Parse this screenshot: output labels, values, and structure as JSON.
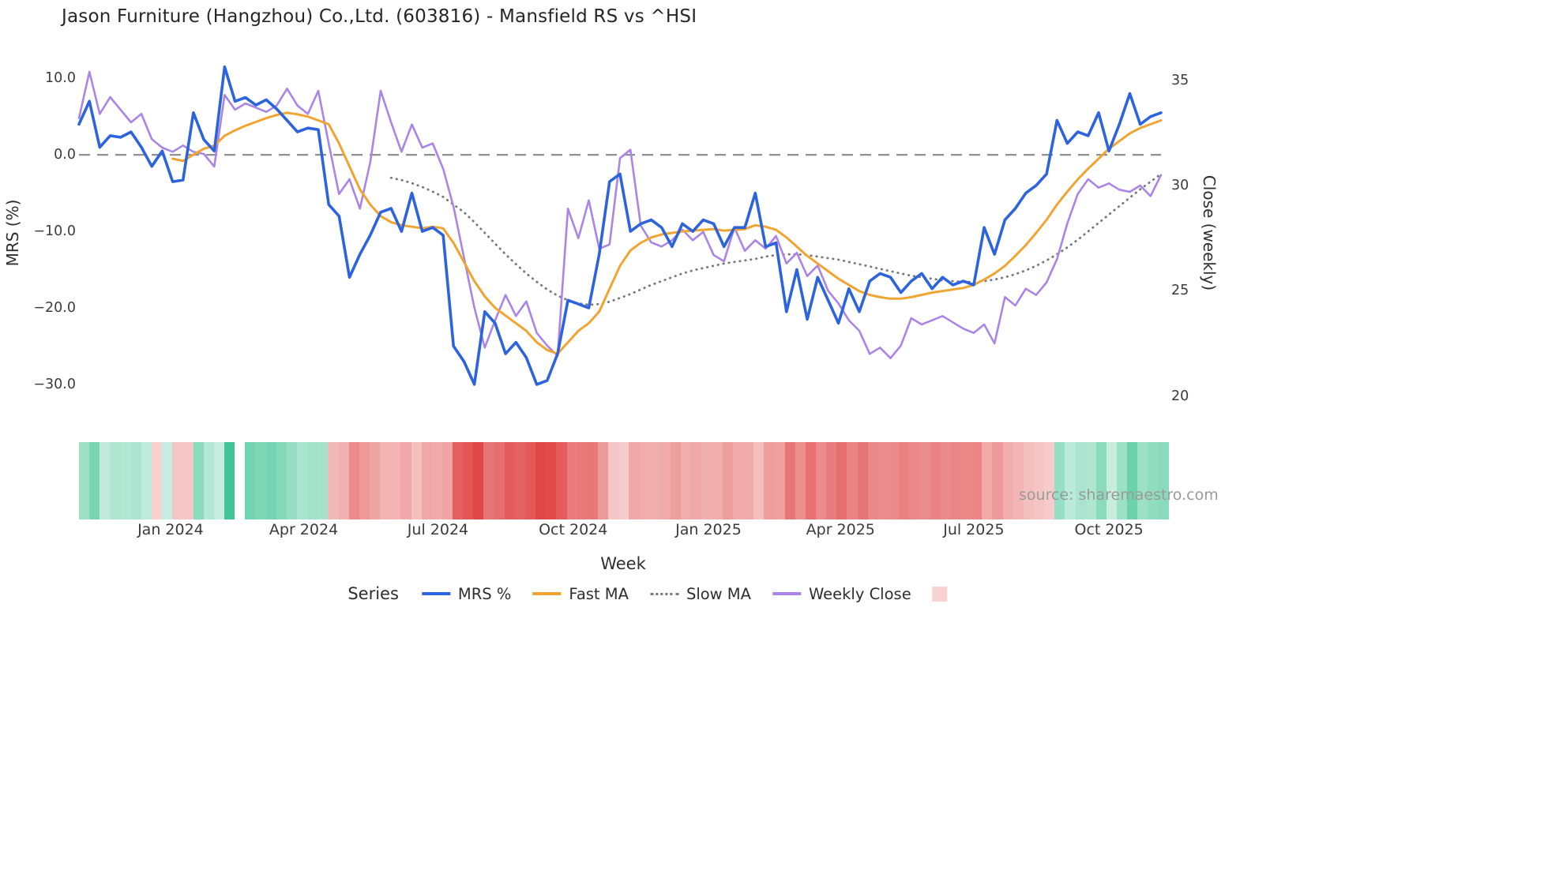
{
  "source_text": "source: sharemaestro.com",
  "legend": {
    "title": "Series",
    "entries": [
      {
        "id": "mrs",
        "label": "MRS %",
        "color": "#2d64dd",
        "style": "line"
      },
      {
        "id": "fast_ma",
        "label": "Fast MA",
        "color": "#f0a431",
        "style": "line"
      },
      {
        "id": "slow_ma",
        "label": "Slow MA",
        "color": "#787878",
        "style": "dotted"
      },
      {
        "id": "weekly_close",
        "label": "Weekly Close",
        "color": "#aa85e6",
        "style": "line"
      },
      {
        "id": "heatmap",
        "label": "",
        "color": "#f9d2d2",
        "style": "square"
      }
    ]
  },
  "chart_data": {
    "type": "line",
    "title": "Jason Furniture (Hangzhou) Co.,Ltd. (603816) - Mansfield RS vs ^HSI",
    "xlabel": "Week",
    "ylabel_left": "MRS (%)",
    "ylabel_right": "Close (weekly)",
    "x_unit": "weekly observations, index 0-104",
    "n_weeks": 105,
    "zero_reference_line": 0,
    "left_ylim": [
      -32.9,
      12.5
    ],
    "right_ylim": [
      19.5,
      36.0
    ],
    "left_ticks": [
      {
        "label": "10.0",
        "value": 10
      },
      {
        "label": "0.0",
        "value": 0
      },
      {
        "label": "−10.0",
        "value": -10
      },
      {
        "label": "−20.0",
        "value": -20
      },
      {
        "label": "−30.0",
        "value": -30
      }
    ],
    "right_ticks": [
      {
        "label": "35",
        "value": 35
      },
      {
        "label": "30",
        "value": 30
      },
      {
        "label": "25",
        "value": 25
      },
      {
        "label": "20",
        "value": 20
      }
    ],
    "x_ticks": [
      {
        "label": "Jan 2024",
        "week": 8.8
      },
      {
        "label": "Apr 2024",
        "week": 21.6
      },
      {
        "label": "Jul 2024",
        "week": 34.5
      },
      {
        "label": "Oct 2024",
        "week": 47.5
      },
      {
        "label": "Jan 2025",
        "week": 60.5
      },
      {
        "label": "Apr 2025",
        "week": 73.2
      },
      {
        "label": "Jul 2025",
        "week": 86.0
      },
      {
        "label": "Oct 2025",
        "week": 99.0
      }
    ],
    "draw_order": [
      "slow_ma",
      "weekly_close",
      "fast_ma",
      "mrs"
    ],
    "series": [
      {
        "id": "mrs",
        "name": "MRS %",
        "axis": "left",
        "color": "#2d64dd",
        "width": 3.6,
        "dash": null,
        "values": [
          4.0,
          7.0,
          1.0,
          2.5,
          2.3,
          3.0,
          1.0,
          -1.5,
          0.5,
          -3.5,
          -3.3,
          5.5,
          2.0,
          0.5,
          11.5,
          7.0,
          7.5,
          6.5,
          7.2,
          6.0,
          4.5,
          3.0,
          3.5,
          3.3,
          -6.5,
          -8.0,
          -16.0,
          -13.0,
          -10.5,
          -7.5,
          -7.0,
          -10.0,
          -5.0,
          -10.0,
          -9.5,
          -10.5,
          -25.0,
          -27.0,
          -30.0,
          -20.5,
          -22.0,
          -26.0,
          -24.5,
          -26.5,
          -30.0,
          -29.5,
          -26.0,
          -19.0,
          -19.5,
          -20.0,
          -13.0,
          -3.5,
          -2.5,
          -10.0,
          -9.0,
          -8.5,
          -9.5,
          -12.0,
          -9.0,
          -10.0,
          -8.5,
          -9.0,
          -12.0,
          -9.5,
          -9.5,
          -5.0,
          -12.0,
          -11.5,
          -20.5,
          -15.0,
          -21.5,
          -16.0,
          -19.0,
          -22.0,
          -17.5,
          -20.5,
          -16.5,
          -15.5,
          -16.0,
          -18.0,
          -16.5,
          -15.5,
          -17.5,
          -16.0,
          -17.0,
          -16.5,
          -17.0,
          -9.5,
          -13.0,
          -8.5,
          -7.0,
          -5.0,
          -4.0,
          -2.5,
          4.5,
          1.5,
          3.0,
          2.5,
          5.5,
          0.5,
          4.0,
          8.0,
          4.0,
          5.0,
          5.5
        ]
      },
      {
        "id": "fast_ma",
        "name": "Fast MA",
        "axis": "left",
        "color": "#f0a431",
        "width": 3,
        "dash": null,
        "values": [
          null,
          null,
          null,
          null,
          null,
          null,
          null,
          null,
          null,
          -0.5,
          -0.8,
          0.0,
          0.8,
          1.2,
          2.5,
          3.2,
          3.8,
          4.3,
          4.8,
          5.2,
          5.5,
          5.3,
          5.0,
          4.5,
          4.0,
          1.5,
          -1.5,
          -4.5,
          -6.5,
          -8.0,
          -8.8,
          -9.2,
          -9.4,
          -9.6,
          -9.4,
          -9.6,
          -11.5,
          -14.0,
          -16.5,
          -18.5,
          -20.0,
          -21.0,
          -22.0,
          -23.0,
          -24.5,
          -25.5,
          -26.0,
          -24.5,
          -23.0,
          -22.0,
          -20.5,
          -17.5,
          -14.5,
          -12.5,
          -11.5,
          -10.8,
          -10.4,
          -10.2,
          -10.0,
          -9.9,
          -9.8,
          -9.7,
          -9.9,
          -9.8,
          -9.7,
          -9.2,
          -9.4,
          -9.8,
          -10.8,
          -12.0,
          -13.2,
          -14.2,
          -15.2,
          -16.2,
          -17.0,
          -17.8,
          -18.3,
          -18.6,
          -18.8,
          -18.8,
          -18.6,
          -18.3,
          -18.0,
          -17.8,
          -17.6,
          -17.4,
          -17.0,
          -16.3,
          -15.5,
          -14.5,
          -13.2,
          -11.8,
          -10.2,
          -8.5,
          -6.5,
          -4.8,
          -3.2,
          -1.8,
          -0.5,
          0.8,
          1.8,
          2.8,
          3.5,
          4.0,
          4.5
        ]
      },
      {
        "id": "slow_ma",
        "name": "Slow MA",
        "axis": "left",
        "color": "#787878",
        "width": 2.8,
        "dash": "0.5 6.5",
        "values": [
          null,
          null,
          null,
          null,
          null,
          null,
          null,
          null,
          null,
          null,
          null,
          null,
          null,
          null,
          null,
          null,
          null,
          null,
          null,
          null,
          null,
          null,
          null,
          null,
          null,
          null,
          null,
          null,
          null,
          null,
          -3.0,
          -3.3,
          -3.7,
          -4.2,
          -4.8,
          -5.5,
          -6.5,
          -7.5,
          -8.8,
          -10.2,
          -11.6,
          -13.0,
          -14.3,
          -15.5,
          -16.6,
          -17.6,
          -18.4,
          -19.0,
          -19.4,
          -19.6,
          -19.5,
          -19.2,
          -18.7,
          -18.2,
          -17.6,
          -17.0,
          -16.5,
          -16.0,
          -15.5,
          -15.1,
          -14.8,
          -14.5,
          -14.2,
          -14.0,
          -13.8,
          -13.6,
          -13.3,
          -13.1,
          -13.0,
          -13.0,
          -13.1,
          -13.3,
          -13.5,
          -13.7,
          -14.0,
          -14.3,
          -14.6,
          -14.9,
          -15.2,
          -15.5,
          -15.8,
          -16.0,
          -16.2,
          -16.4,
          -16.5,
          -16.6,
          -16.6,
          -16.5,
          -16.3,
          -16.0,
          -15.6,
          -15.1,
          -14.5,
          -13.8,
          -13.0,
          -12.1,
          -11.1,
          -10.0,
          -8.9,
          -7.8,
          -6.7,
          -5.6,
          -4.5,
          -3.5,
          -2.5
        ]
      },
      {
        "id": "weekly_close",
        "name": "Weekly Close",
        "axis": "right",
        "color": "#aa85e6",
        "width": 2.6,
        "dash": null,
        "values": [
          33.2,
          35.4,
          33.4,
          34.2,
          33.6,
          33.0,
          33.4,
          32.2,
          31.8,
          31.6,
          31.9,
          31.6,
          31.5,
          30.9,
          34.3,
          33.6,
          33.9,
          33.7,
          33.5,
          33.8,
          34.6,
          33.8,
          33.4,
          34.5,
          32.0,
          29.6,
          30.3,
          28.9,
          31.1,
          34.5,
          33.0,
          31.6,
          32.9,
          31.8,
          32.0,
          30.8,
          29.0,
          26.6,
          24.2,
          22.3,
          23.6,
          24.8,
          23.8,
          24.5,
          23.0,
          22.4,
          21.9,
          28.9,
          27.5,
          29.3,
          27.0,
          27.2,
          31.3,
          31.7,
          28.1,
          27.3,
          27.1,
          27.4,
          27.9,
          27.4,
          27.8,
          26.7,
          26.4,
          28.0,
          26.9,
          27.4,
          27.0,
          27.6,
          26.3,
          26.8,
          25.7,
          26.2,
          25.0,
          24.4,
          23.6,
          23.1,
          22.0,
          22.3,
          21.8,
          22.4,
          23.7,
          23.4,
          23.6,
          23.8,
          23.5,
          23.2,
          23.0,
          23.4,
          22.5,
          24.7,
          24.3,
          25.1,
          24.8,
          25.4,
          26.5,
          28.2,
          29.6,
          30.3,
          29.9,
          30.1,
          29.8,
          29.7,
          30.0,
          29.5,
          30.5
        ]
      }
    ],
    "heatmap": {
      "description": "weekly strip colored by MRS % sign and magnitude (green positive, red negative)",
      "basis_series": "mrs",
      "positive_color": "#35c08f",
      "negative_color": "#e04848",
      "positive_scale": 12,
      "negative_scale": 30,
      "gap_weeks": [
        15
      ]
    }
  }
}
